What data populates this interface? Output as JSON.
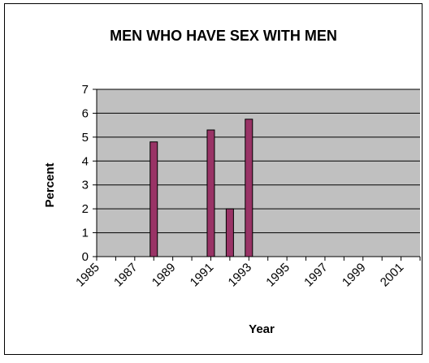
{
  "chart_data": {
    "type": "bar",
    "title": "MEN WHO HAVE SEX WITH MEN",
    "xlabel": "Year",
    "ylabel": "Percent",
    "ylim": [
      0,
      7
    ],
    "yticks": [
      "0",
      "1",
      "2",
      "3",
      "4",
      "5",
      "6",
      "7"
    ],
    "xlim": [
      1985,
      2002
    ],
    "xticks": [
      "1985",
      "1987",
      "1989",
      "1991",
      "1993",
      "1995",
      "1997",
      "1999",
      "2001"
    ],
    "grid": true,
    "legend": "none",
    "categories": [
      "1988",
      "1991",
      "1992",
      "1993"
    ],
    "values": [
      4.8,
      5.3,
      2.0,
      5.75
    ],
    "colors": {
      "bar": "#993366",
      "plot_background": "#c0c0c0",
      "gridline": "#000000"
    }
  }
}
